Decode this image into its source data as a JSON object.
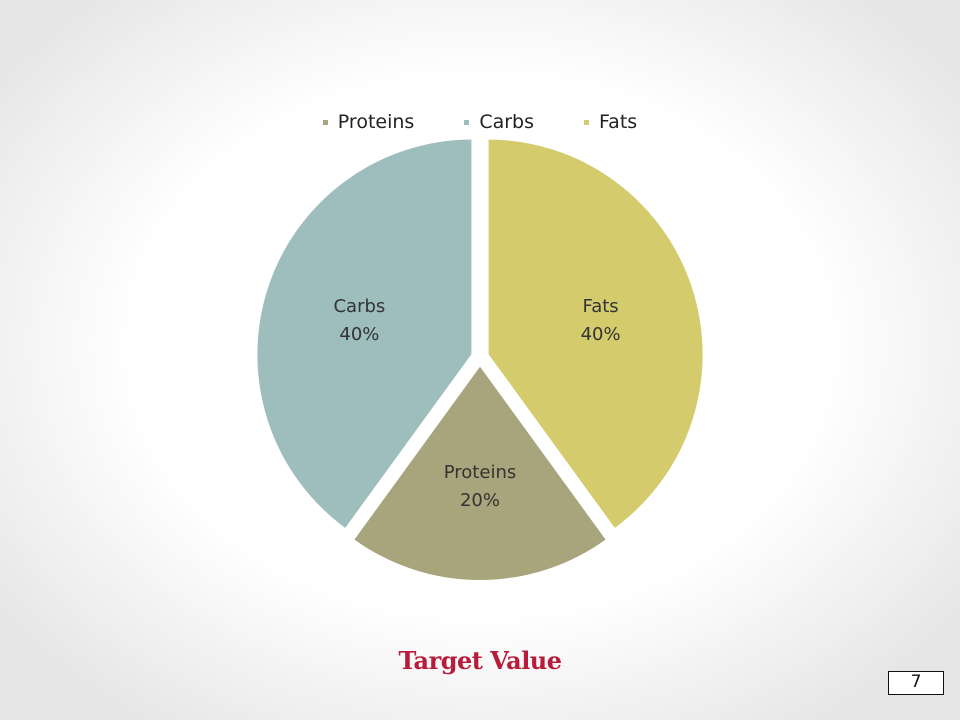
{
  "chart_data": {
    "type": "pie",
    "title": "",
    "categories": [
      "Proteins",
      "Carbs",
      "Fats"
    ],
    "values": [
      20,
      40,
      40
    ],
    "labels": [
      "20%",
      "40%",
      "40%"
    ],
    "legend": "top",
    "colors": [
      "#a8a57c",
      "#9ebdbd",
      "#d3cb6c"
    ]
  },
  "caption": "Target Value",
  "page_number": "7"
}
